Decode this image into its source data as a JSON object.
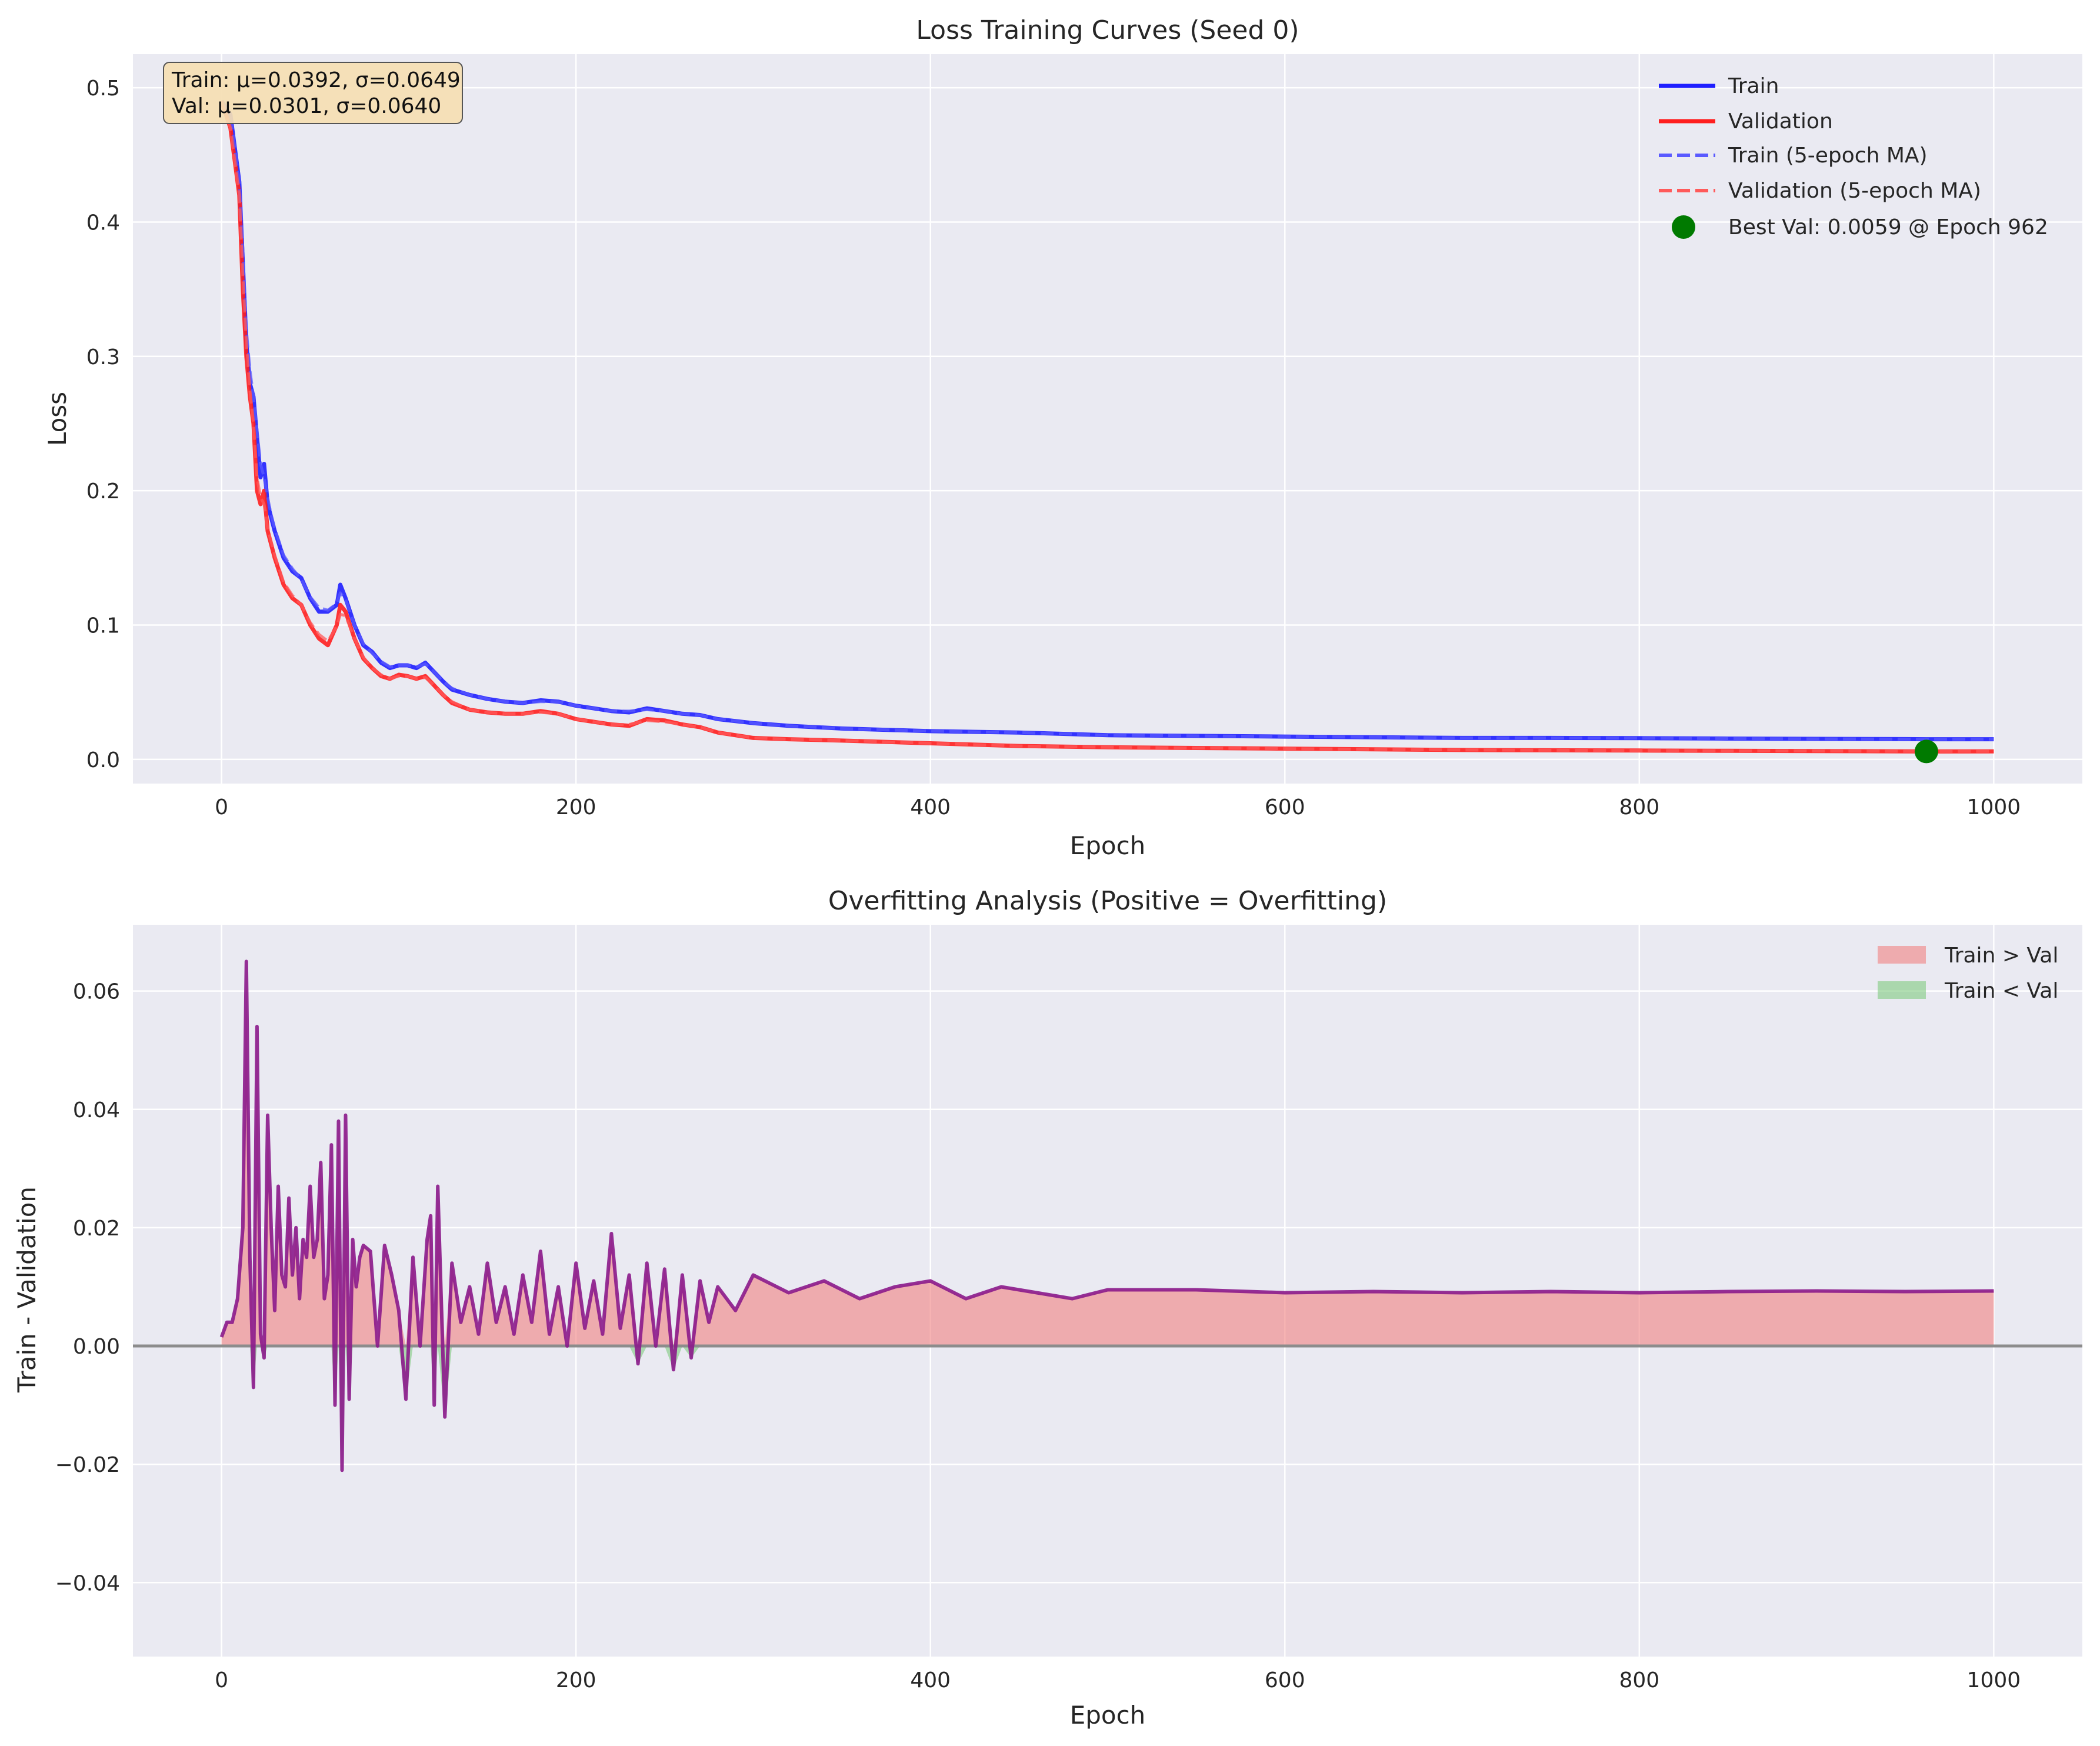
{
  "chart_data": [
    {
      "type": "line",
      "title": "Loss Training Curves (Seed 0)",
      "xlabel": "Epoch",
      "ylabel": "Loss",
      "xlim": [
        -50,
        1050
      ],
      "ylim": [
        -0.018,
        0.525
      ],
      "xticks": [
        0,
        200,
        400,
        600,
        800,
        1000
      ],
      "yticks": [
        0.0,
        0.1,
        0.2,
        0.3,
        0.4,
        0.5
      ],
      "xtick_labels": [
        "0",
        "200",
        "400",
        "600",
        "800",
        "1000"
      ],
      "ytick_labels": [
        "0.0",
        "0.1",
        "0.2",
        "0.3",
        "0.4",
        "0.5"
      ],
      "grid": true,
      "legend_position": "top-right",
      "stats_box": {
        "line1": "Train: μ=0.0392, σ=0.0649",
        "line2": "Val: μ=0.0301, σ=0.0640",
        "position": "top-left"
      },
      "x": [
        0,
        5,
        10,
        12,
        14,
        16,
        18,
        20,
        22,
        24,
        26,
        28,
        30,
        35,
        40,
        45,
        50,
        55,
        60,
        65,
        67,
        70,
        75,
        80,
        85,
        90,
        95,
        100,
        105,
        110,
        115,
        120,
        125,
        130,
        140,
        150,
        160,
        170,
        180,
        190,
        200,
        210,
        220,
        230,
        240,
        250,
        260,
        270,
        280,
        300,
        320,
        350,
        400,
        450,
        500,
        550,
        600,
        650,
        700,
        750,
        800,
        850,
        900,
        950,
        962,
        1000
      ],
      "series": [
        {
          "name": "Train",
          "style": "solid",
          "color": "#1f1fff",
          "values": [
            0.49,
            0.48,
            0.43,
            0.37,
            0.31,
            0.28,
            0.27,
            0.24,
            0.21,
            0.22,
            0.19,
            0.18,
            0.17,
            0.15,
            0.14,
            0.135,
            0.12,
            0.11,
            0.11,
            0.115,
            0.13,
            0.12,
            0.1,
            0.085,
            0.08,
            0.072,
            0.068,
            0.07,
            0.07,
            0.068,
            0.072,
            0.065,
            0.058,
            0.052,
            0.048,
            0.045,
            0.043,
            0.042,
            0.044,
            0.043,
            0.04,
            0.038,
            0.036,
            0.035,
            0.038,
            0.036,
            0.034,
            0.033,
            0.03,
            0.027,
            0.025,
            0.023,
            0.021,
            0.02,
            0.018,
            0.0175,
            0.017,
            0.0165,
            0.016,
            0.016,
            0.0158,
            0.0155,
            0.0153,
            0.0151,
            0.015,
            0.015
          ]
        },
        {
          "name": "Validation",
          "style": "solid",
          "color": "#ff1f1f",
          "values": [
            0.49,
            0.47,
            0.42,
            0.35,
            0.3,
            0.27,
            0.25,
            0.2,
            0.19,
            0.2,
            0.17,
            0.16,
            0.15,
            0.13,
            0.12,
            0.115,
            0.1,
            0.09,
            0.085,
            0.1,
            0.115,
            0.11,
            0.09,
            0.075,
            0.068,
            0.062,
            0.06,
            0.063,
            0.062,
            0.06,
            0.062,
            0.055,
            0.048,
            0.042,
            0.037,
            0.035,
            0.034,
            0.034,
            0.036,
            0.034,
            0.03,
            0.028,
            0.026,
            0.025,
            0.03,
            0.029,
            0.026,
            0.024,
            0.02,
            0.016,
            0.015,
            0.014,
            0.012,
            0.01,
            0.009,
            0.0085,
            0.008,
            0.0075,
            0.007,
            0.0068,
            0.0066,
            0.0064,
            0.0062,
            0.006,
            0.0059,
            0.006
          ]
        },
        {
          "name": "Train (5-epoch MA)",
          "style": "dashed",
          "color": "#5a5aff",
          "values": [
            0.49,
            0.48,
            0.43,
            0.38,
            0.32,
            0.29,
            0.27,
            0.245,
            0.22,
            0.21,
            0.195,
            0.182,
            0.172,
            0.152,
            0.142,
            0.134,
            0.121,
            0.113,
            0.111,
            0.116,
            0.124,
            0.119,
            0.1,
            0.086,
            0.079,
            0.073,
            0.069,
            0.07,
            0.07,
            0.069,
            0.071,
            0.065,
            0.058,
            0.053,
            0.048,
            0.045,
            0.043,
            0.042,
            0.043,
            0.043,
            0.04,
            0.038,
            0.036,
            0.036,
            0.037,
            0.036,
            0.034,
            0.033,
            0.03,
            0.027,
            0.025,
            0.023,
            0.021,
            0.02,
            0.018,
            0.0175,
            0.017,
            0.0165,
            0.016,
            0.016,
            0.0158,
            0.0155,
            0.0153,
            0.0151,
            0.015,
            0.015
          ]
        },
        {
          "name": "Validation (5-epoch MA)",
          "style": "dashed",
          "color": "#ff5a5a",
          "values": [
            0.49,
            0.47,
            0.42,
            0.36,
            0.31,
            0.275,
            0.25,
            0.21,
            0.195,
            0.19,
            0.172,
            0.162,
            0.152,
            0.132,
            0.122,
            0.115,
            0.102,
            0.093,
            0.088,
            0.099,
            0.108,
            0.107,
            0.09,
            0.076,
            0.068,
            0.063,
            0.06,
            0.062,
            0.062,
            0.06,
            0.061,
            0.055,
            0.048,
            0.043,
            0.037,
            0.035,
            0.034,
            0.034,
            0.035,
            0.034,
            0.03,
            0.028,
            0.026,
            0.026,
            0.029,
            0.028,
            0.026,
            0.024,
            0.02,
            0.016,
            0.015,
            0.014,
            0.012,
            0.01,
            0.009,
            0.0085,
            0.008,
            0.0075,
            0.007,
            0.0068,
            0.0066,
            0.0064,
            0.0062,
            0.006,
            0.0059,
            0.006
          ]
        }
      ],
      "best_point": {
        "label": "Best Val: 0.0059 @ Epoch 962",
        "x": 962,
        "y": 0.0059,
        "color": "#007a00"
      }
    },
    {
      "type": "area",
      "title": "Overfitting Analysis (Positive = Overfitting)",
      "xlabel": "Epoch",
      "ylabel": "Train - Validation",
      "xlim": [
        -50,
        1050
      ],
      "ylim": [
        -0.0525,
        0.0712
      ],
      "xticks": [
        0,
        200,
        400,
        600,
        800,
        1000
      ],
      "yticks": [
        -0.04,
        -0.02,
        0.0,
        0.02,
        0.04,
        0.06
      ],
      "xtick_labels": [
        "0",
        "200",
        "400",
        "600",
        "800",
        "1000"
      ],
      "ytick_labels": [
        "−0.04",
        "−0.02",
        "0.00",
        "0.02",
        "0.04",
        "0.06"
      ],
      "grid": true,
      "legend_position": "top-right",
      "line_color": "#8b1a8b",
      "fill_positive": {
        "label": "Train > Val",
        "color": "#f08080"
      },
      "fill_negative": {
        "label": "Train < Val",
        "color": "#7fc97f"
      },
      "zero_line_color": "#8c8c8c",
      "x": [
        0,
        3,
        6,
        9,
        12,
        14,
        16,
        18,
        20,
        22,
        24,
        26,
        28,
        30,
        32,
        34,
        36,
        38,
        40,
        42,
        44,
        46,
        48,
        50,
        52,
        54,
        56,
        58,
        60,
        62,
        64,
        66,
        68,
        70,
        72,
        74,
        76,
        78,
        80,
        84,
        88,
        92,
        96,
        100,
        104,
        108,
        112,
        116,
        118,
        120,
        122,
        126,
        130,
        135,
        140,
        145,
        150,
        155,
        160,
        165,
        170,
        175,
        180,
        185,
        190,
        195,
        200,
        205,
        210,
        215,
        220,
        225,
        230,
        235,
        240,
        245,
        250,
        255,
        260,
        265,
        270,
        275,
        280,
        290,
        300,
        320,
        340,
        360,
        380,
        400,
        420,
        440,
        460,
        480,
        500,
        550,
        600,
        650,
        700,
        750,
        800,
        850,
        900,
        950,
        1000
      ],
      "values": [
        0.0015,
        0.004,
        0.004,
        0.008,
        0.02,
        0.065,
        0.015,
        -0.007,
        0.054,
        0.002,
        -0.002,
        0.039,
        0.02,
        0.006,
        0.027,
        0.012,
        0.01,
        0.025,
        0.012,
        0.02,
        0.008,
        0.018,
        0.015,
        0.027,
        0.015,
        0.018,
        0.031,
        0.008,
        0.012,
        0.034,
        -0.01,
        0.038,
        -0.021,
        0.039,
        -0.009,
        0.018,
        0.01,
        0.015,
        0.017,
        0.016,
        0.0,
        0.017,
        0.012,
        0.006,
        -0.009,
        0.015,
        0.0,
        0.018,
        0.022,
        -0.01,
        0.027,
        -0.012,
        0.014,
        0.004,
        0.01,
        0.002,
        0.014,
        0.004,
        0.01,
        0.002,
        0.012,
        0.004,
        0.016,
        0.002,
        0.01,
        0.0,
        0.014,
        0.003,
        0.011,
        0.002,
        0.019,
        0.003,
        0.012,
        -0.003,
        0.014,
        0.0,
        0.013,
        -0.004,
        0.012,
        -0.002,
        0.011,
        0.004,
        0.01,
        0.006,
        0.012,
        0.009,
        0.011,
        0.008,
        0.01,
        0.011,
        0.008,
        0.01,
        0.009,
        0.008,
        0.0095,
        0.0095,
        0.009,
        0.0092,
        0.009,
        0.0092,
        0.009,
        0.0092,
        0.0093,
        0.0092,
        0.0093
      ]
    }
  ]
}
